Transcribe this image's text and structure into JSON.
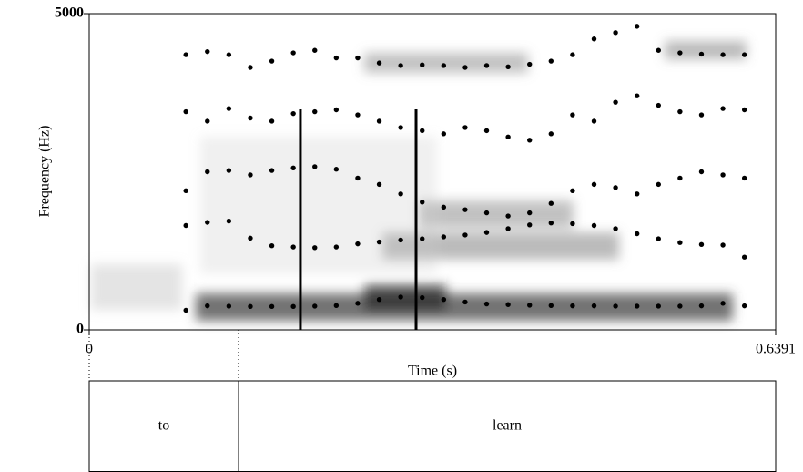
{
  "chart_data": {
    "type": "scatter",
    "x_label": "Time (s)",
    "y_label": "Frequency (Hz)",
    "xlim": [
      0,
      0.6391
    ],
    "ylim": [
      0,
      5000
    ],
    "xticks": [
      0,
      0.6391
    ],
    "yticks": [
      0,
      5000
    ],
    "x": [
      0.09,
      0.11,
      0.13,
      0.15,
      0.17,
      0.19,
      0.21,
      0.23,
      0.25,
      0.27,
      0.29,
      0.31,
      0.33,
      0.35,
      0.37,
      0.39,
      0.41,
      0.43,
      0.45,
      0.47,
      0.49,
      0.51,
      0.53,
      0.55,
      0.57,
      0.59,
      0.61
    ],
    "series": [
      {
        "color": "#000000",
        "values": [
          310,
          380,
          375,
          370,
          370,
          370,
          375,
          385,
          420,
          480,
          520,
          510,
          480,
          440,
          410,
          400,
          390,
          385,
          380,
          380,
          375,
          375,
          375,
          375,
          380,
          420,
          380
        ]
      },
      {
        "color": "#000000",
        "values": [
          1650,
          1700,
          1720,
          1450,
          1330,
          1310,
          1300,
          1310,
          1360,
          1390,
          1420,
          1440,
          1470,
          1500,
          1540,
          1600,
          1660,
          1690,
          1680,
          1650,
          1600,
          1520,
          1440,
          1380,
          1350,
          1340,
          1150
        ]
      },
      {
        "color": "#000000",
        "values": [
          2200,
          2500,
          2520,
          2450,
          2520,
          2560,
          2580,
          2540,
          2400,
          2300,
          2150,
          2020,
          1940,
          1900,
          1850,
          1800,
          1850,
          2000,
          2200,
          2300,
          2250,
          2150,
          2300,
          2400,
          2500,
          2450,
          2400
        ]
      },
      {
        "color": "#000000",
        "values": [
          3450,
          3300,
          3500,
          3350,
          3300,
          3420,
          3450,
          3480,
          3400,
          3300,
          3200,
          3150,
          3100,
          3200,
          3150,
          3050,
          3000,
          3100,
          3400,
          3300,
          3600,
          3700,
          3550,
          3450,
          3400,
          3500,
          3480
        ]
      },
      {
        "color": "#000000",
        "values": [
          4350,
          4400,
          4350,
          4150,
          4250,
          4380,
          4420,
          4300,
          4300,
          4220,
          4180,
          4190,
          4180,
          4150,
          4180,
          4160,
          4200,
          4250,
          4350,
          4600,
          4700,
          4800,
          4420,
          4380,
          4360,
          4350,
          4350
        ]
      }
    ],
    "cursors": [
      {
        "time": 0.1966,
        "top": 3487
      },
      {
        "time": 0.3043,
        "top": 3487
      }
    ],
    "intervals": [
      {
        "label": "to",
        "start": 0,
        "end": 0.139
      },
      {
        "label": "learn",
        "start": 0.139,
        "end": 0.6391
      }
    ]
  }
}
